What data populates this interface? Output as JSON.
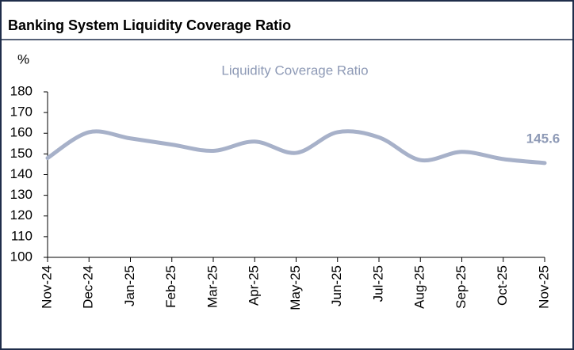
{
  "chart_data": {
    "type": "line",
    "title": "Banking System Liquidity Coverage Ratio",
    "y_label": "%",
    "categories": [
      "Nov-24",
      "Dec-24",
      "Jan-25",
      "Feb-25",
      "Mar-25",
      "Apr-25",
      "May-25",
      "Jun-25",
      "Jul-25",
      "Aug-25",
      "Sep-25",
      "Oct-25",
      "Nov-25"
    ],
    "series": [
      {
        "name": "Liquidity Coverage Ratio",
        "color": "#a7b1c9",
        "values": [
          148,
          160.5,
          157.5,
          154.5,
          151.5,
          156,
          150.5,
          160.5,
          158,
          147,
          151,
          147.5,
          145.6
        ]
      }
    ],
    "ylim": [
      100,
      180
    ],
    "yticks": [
      100,
      110,
      120,
      130,
      140,
      150,
      160,
      170,
      180
    ],
    "grid": false,
    "smooth": true,
    "end_label": true
  }
}
